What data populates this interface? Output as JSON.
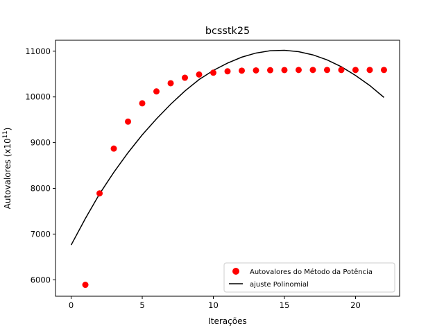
{
  "chart_data": {
    "type": "scatter",
    "title": "bcsstk25",
    "xlabel": "Iterações",
    "ylabel": "Autovalores (x10",
    "ylabel_exp": "11",
    "ylabel_close": ")",
    "xlim": [
      -1.1,
      23.1
    ],
    "ylim": [
      5640,
      11240
    ],
    "xticks": [
      0,
      5,
      10,
      15,
      20
    ],
    "xtick_labels": [
      "0",
      "5",
      "10",
      "15",
      "20"
    ],
    "yticks": [
      6000,
      7000,
      8000,
      9000,
      10000,
      11000
    ],
    "ytick_labels": [
      "6000",
      "7000",
      "8000",
      "9000",
      "10000",
      "11000"
    ],
    "grid": false,
    "legend_position": "lower-right",
    "series": [
      {
        "name": "Autovalores do Método da Potência",
        "kind": "scatter",
        "color": "#ff0000",
        "x": [
          1,
          2,
          3,
          4,
          5,
          6,
          7,
          8,
          9,
          10,
          11,
          12,
          13,
          14,
          15,
          16,
          17,
          18,
          19,
          20,
          21,
          22
        ],
        "y": [
          5890,
          7890,
          8870,
          9460,
          9860,
          10120,
          10300,
          10420,
          10490,
          10530,
          10560,
          10575,
          10580,
          10585,
          10588,
          10590,
          10590,
          10590,
          10590,
          10590,
          10590,
          10590
        ]
      },
      {
        "name": "ajuste Polinomial",
        "kind": "line",
        "color": "#000000",
        "x": [
          0,
          1,
          2,
          3,
          4,
          5,
          6,
          7,
          8,
          9,
          10,
          11,
          12,
          13,
          14,
          15,
          16,
          17,
          18,
          19,
          20,
          21,
          22
        ],
        "y": [
          6760,
          7340,
          7880,
          8350,
          8780,
          9170,
          9520,
          9840,
          10130,
          10380,
          10580,
          10740,
          10870,
          10960,
          11010,
          11020,
          10990,
          10920,
          10810,
          10660,
          10470,
          10250,
          9990
        ]
      }
    ]
  }
}
